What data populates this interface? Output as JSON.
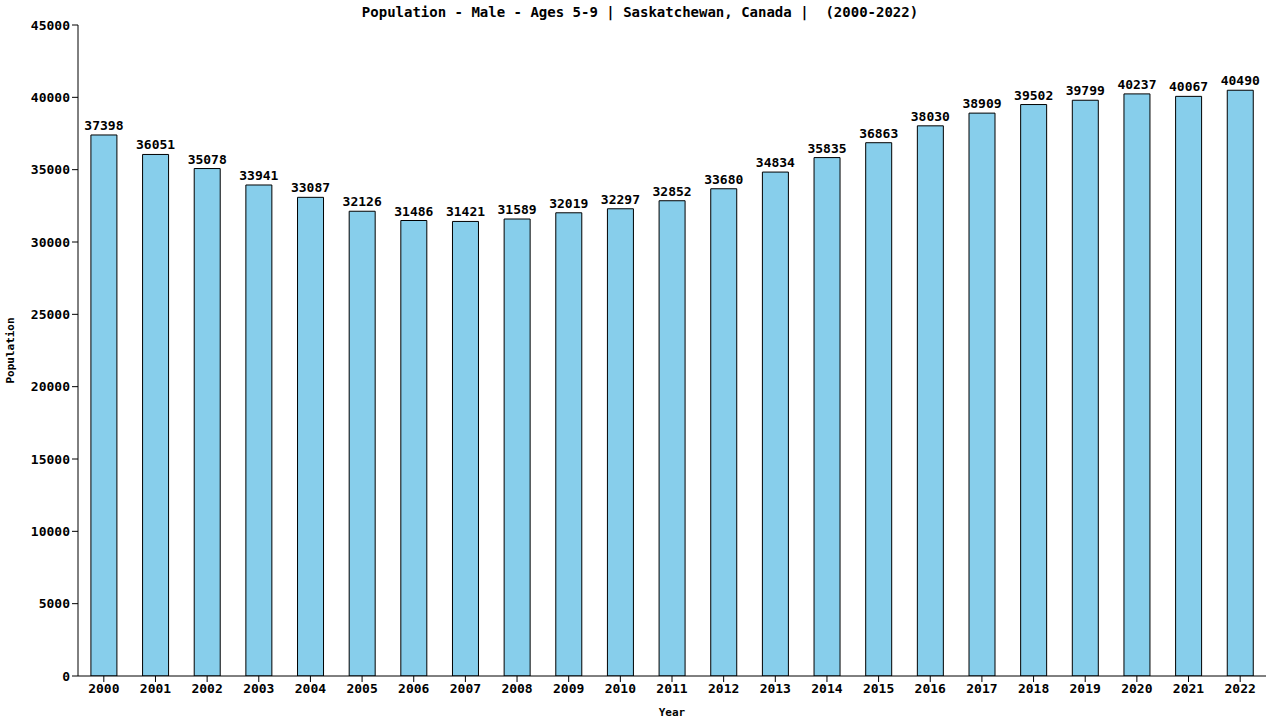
{
  "chart_data": {
    "type": "bar",
    "title": "Population - Male - Ages 5-9 | Saskatchewan, Canada |  (2000-2022)",
    "x_label": "Year",
    "y_label": "Population",
    "categories": [
      "2000",
      "2001",
      "2002",
      "2003",
      "2004",
      "2005",
      "2006",
      "2007",
      "2008",
      "2009",
      "2010",
      "2011",
      "2012",
      "2013",
      "2014",
      "2015",
      "2016",
      "2017",
      "2018",
      "2019",
      "2020",
      "2021",
      "2022"
    ],
    "values": [
      37398,
      36051,
      35078,
      33941,
      33087,
      32126,
      31486,
      31421,
      31589,
      32019,
      32297,
      32852,
      33680,
      34834,
      35835,
      36863,
      38030,
      38909,
      39502,
      39799,
      40237,
      40067,
      40490
    ],
    "color": "#87ceeb",
    "ylim": [
      0,
      45000
    ],
    "yticks": [
      0,
      5000,
      10000,
      15000,
      20000,
      25000,
      30000,
      35000,
      40000,
      45000
    ],
    "grid": false,
    "data_labels": true
  }
}
